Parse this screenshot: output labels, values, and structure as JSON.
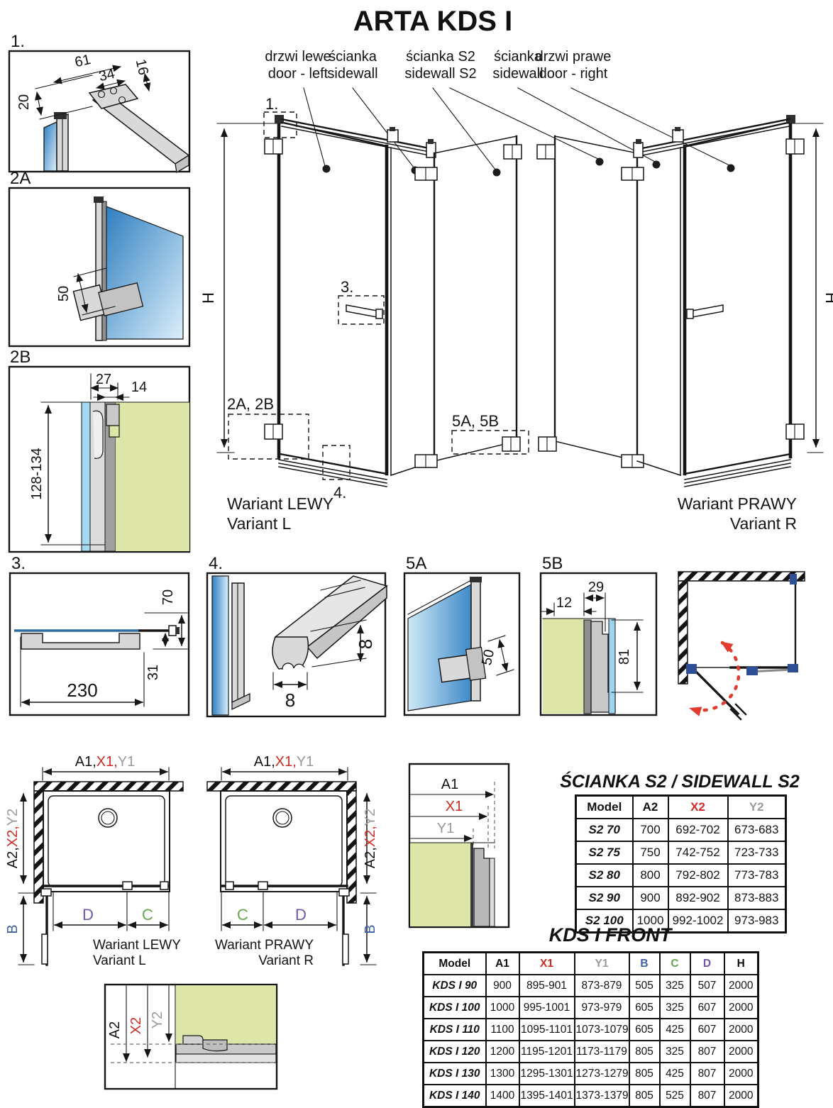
{
  "title": "ARTA KDS I",
  "top_labels": [
    {
      "pl": "drzwi lewe",
      "en": "door - left"
    },
    {
      "pl": "ścianka",
      "en": "sidewall"
    },
    {
      "pl": "ścianka S2",
      "en": "sidewall S2"
    },
    {
      "pl": "ścianka",
      "en": "sidewall"
    },
    {
      "pl": "drzwi prawe",
      "en": "door - right"
    }
  ],
  "variant_left": {
    "pl": "Wariant LEWY",
    "en": "Variant L"
  },
  "variant_right": {
    "pl": "Wariant PRAWY",
    "en": "Variant R"
  },
  "callouts": {
    "c1": "1.",
    "c2": "2A, 2B",
    "c3": "3.",
    "c4": "4.",
    "c5": "5A, 5B"
  },
  "details": {
    "d1": {
      "label": "1.",
      "dim_61": "61",
      "dim_34": "34",
      "dim_16": "16",
      "dim_20": "20"
    },
    "d2a": {
      "label": "2A",
      "dim_50": "50"
    },
    "d2b": {
      "label": "2B",
      "dim_27": "27",
      "dim_14": "14",
      "dim_range": "128-134"
    },
    "d3": {
      "label": "3.",
      "dim_70": "70",
      "dim_31": "31",
      "dim_230": "230"
    },
    "d4": {
      "label": "4.",
      "dim_w": "8",
      "dim_h": "8"
    },
    "d5a": {
      "label": "5A",
      "dim_50": "50"
    },
    "d5b": {
      "label": "5B",
      "dim_12": "12",
      "dim_29": "29",
      "dim_81": "81"
    }
  },
  "dims": {
    "h": "H",
    "a1": "A1",
    "x1": "X1",
    "y1": "Y1",
    "a2": "A2",
    "x2": "X2",
    "y2": "Y2",
    "a1c": "A1,",
    "x1c": "X1,",
    "a2c": "A2,",
    "x2c": "X2,",
    "b": "B",
    "c": "C",
    "d": "D"
  },
  "s2_table": {
    "title": "ŚCIANKA S2 / SIDEWALL S2",
    "headers": [
      "Model",
      "A2",
      "X2",
      "Y2"
    ],
    "header_colors": [
      "#111111",
      "#111111",
      "#cf2b24",
      "#9a9a9a"
    ],
    "rows": [
      [
        "S2 70",
        "700",
        "692-702",
        "673-683"
      ],
      [
        "S2 75",
        "750",
        "742-752",
        "723-733"
      ],
      [
        "S2 80",
        "800",
        "792-802",
        "773-783"
      ],
      [
        "S2 90",
        "900",
        "892-902",
        "873-883"
      ],
      [
        "S2 100",
        "1000",
        "992-1002",
        "973-983"
      ]
    ]
  },
  "front_table": {
    "title": "KDS I FRONT",
    "headers": [
      "Model",
      "A1",
      "X1",
      "Y1",
      "B",
      "C",
      "D",
      "H"
    ],
    "header_colors": [
      "#111111",
      "#111111",
      "#cf2b24",
      "#9a9a9a",
      "#3c5fa7",
      "#64a74b",
      "#7157a5",
      "#111111"
    ],
    "rows": [
      [
        "KDS I 90",
        "900",
        "895-901",
        "873-879",
        "505",
        "325",
        "507",
        "2000"
      ],
      [
        "KDS I 100",
        "1000",
        "995-1001",
        "973-979",
        "605",
        "325",
        "607",
        "2000"
      ],
      [
        "KDS I 110",
        "1100",
        "1095-1101",
        "1073-1079",
        "605",
        "425",
        "607",
        "2000"
      ],
      [
        "KDS I 120",
        "1200",
        "1195-1201",
        "1173-1179",
        "805",
        "325",
        "807",
        "2000"
      ],
      [
        "KDS I 130",
        "1300",
        "1295-1301",
        "1273-1279",
        "805",
        "425",
        "807",
        "2000"
      ],
      [
        "KDS I 140",
        "1400",
        "1395-1401",
        "1373-1379",
        "805",
        "525",
        "807",
        "2000"
      ]
    ]
  },
  "colors": {
    "accent_red": "#cf2b24",
    "accent_gray": "#9a9a9a",
    "accent_blue": "#3c5fa7",
    "accent_green": "#64a74b",
    "accent_purple": "#7157a5",
    "glass_blue": "#3e8ac7",
    "glass_green": "#dde6a8",
    "swing_red": "#e23c2e"
  }
}
